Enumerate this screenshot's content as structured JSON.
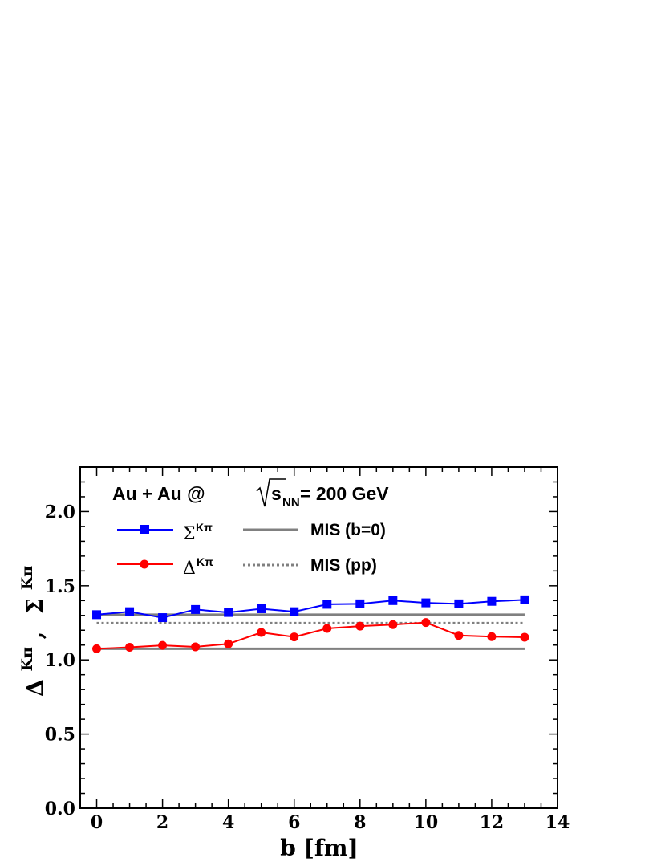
{
  "chart_data": {
    "type": "line",
    "annotation": {
      "prefix": "Au + Au @ ",
      "sqrt_s": "s",
      "sub": "NN",
      "suffix": " = 200 GeV"
    },
    "xlabel": "b [fm]",
    "ylabel": {
      "delta": "Δ",
      "sigma": "Σ",
      "sup": "Kπ",
      "comma": ","
    },
    "xlim": [
      -0.5,
      14
    ],
    "ylim": [
      0.0,
      2.3
    ],
    "x_ticks": [
      "0",
      "2",
      "4",
      "6",
      "8",
      "10",
      "12",
      "14"
    ],
    "y_ticks": [
      "0.0",
      "0.5",
      "1.0",
      "1.5",
      "2.0"
    ],
    "grid": false,
    "legend_position": "top-left",
    "series": [
      {
        "name": "Σ",
        "name_sup": "Kπ",
        "color": "#0000ff",
        "marker": "square",
        "x": [
          0,
          1,
          2,
          3,
          4,
          5,
          6,
          7,
          8,
          9,
          10,
          11,
          12,
          13
        ],
        "y": [
          1.305,
          1.325,
          1.285,
          1.34,
          1.32,
          1.345,
          1.325,
          1.375,
          1.378,
          1.4,
          1.385,
          1.378,
          1.395,
          1.405
        ]
      },
      {
        "name": "Δ",
        "name_sup": "Kπ",
        "color": "#ff0000",
        "marker": "circle",
        "x": [
          0,
          1,
          2,
          3,
          4,
          5,
          6,
          7,
          8,
          9,
          10,
          11,
          12,
          13
        ],
        "y": [
          1.075,
          1.085,
          1.098,
          1.088,
          1.108,
          1.185,
          1.155,
          1.212,
          1.228,
          1.238,
          1.252,
          1.165,
          1.157,
          1.153
        ]
      }
    ],
    "reference_lines": [
      {
        "name": "MIS (b=0)",
        "style": "solid",
        "color": "#808080",
        "y_values": [
          1.305,
          1.075
        ]
      },
      {
        "name": "MIS (pp)",
        "style": "dotted",
        "color": "#808080",
        "y_values": [
          1.248
        ]
      }
    ]
  }
}
